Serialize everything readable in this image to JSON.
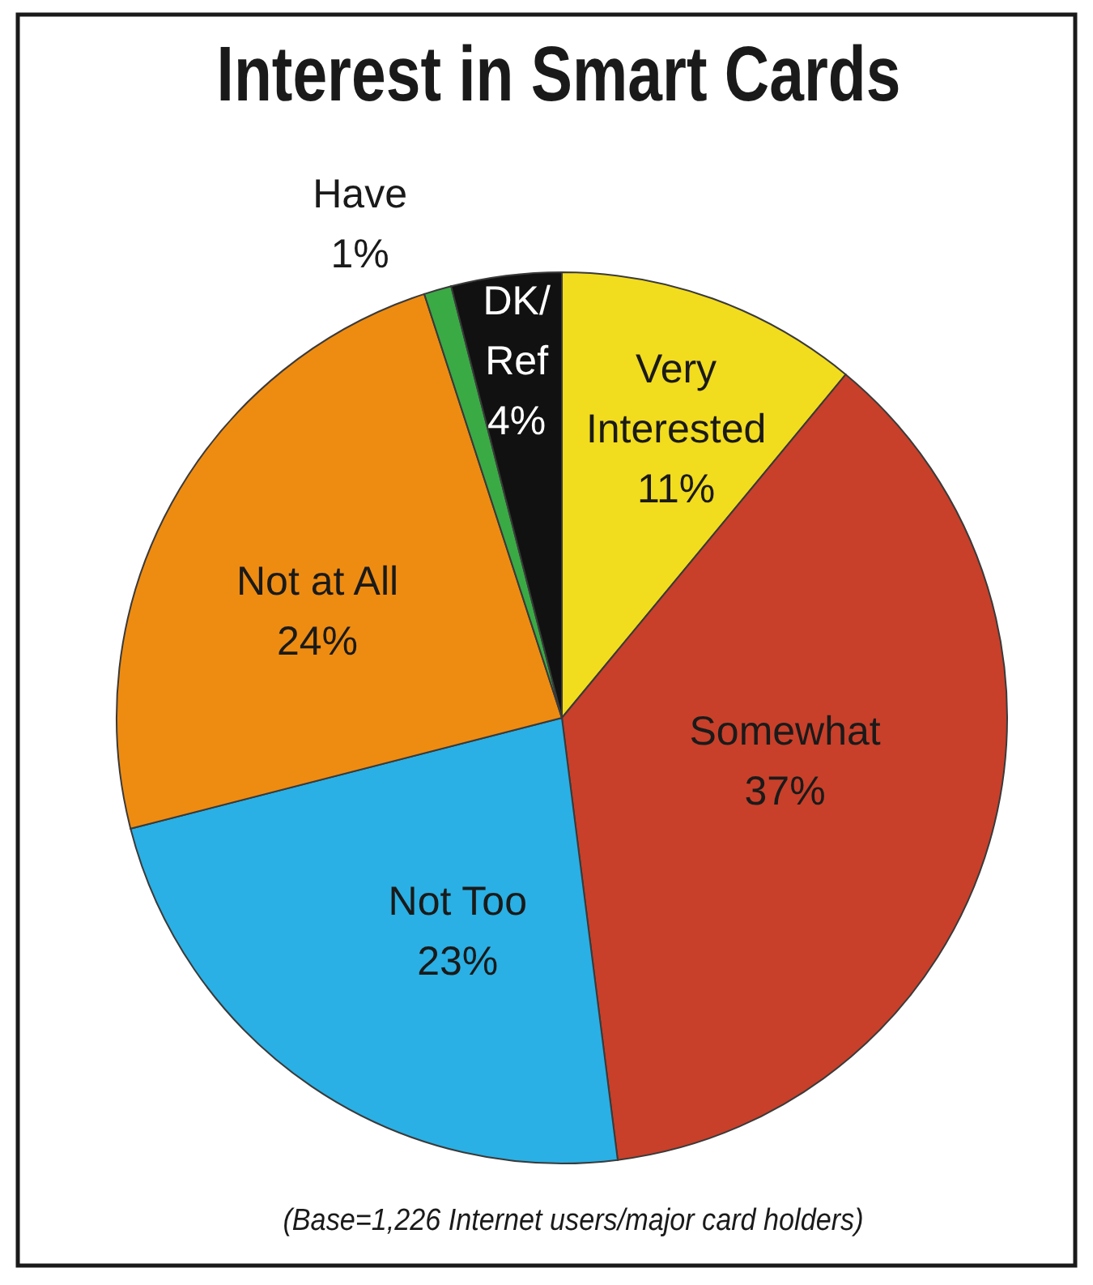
{
  "chart_data": {
    "type": "pie",
    "title": "Interest in Smart Cards",
    "categories": [
      "Very Interested",
      "Somewhat",
      "Not Too",
      "Not at All",
      "Have",
      "DK/Ref"
    ],
    "values": [
      11,
      37,
      23,
      24,
      1,
      4
    ],
    "value_labels": [
      "11%",
      "37%",
      "23%",
      "24%",
      "1%",
      "4%"
    ],
    "colors": [
      "#f2dc1e",
      "#c8402a",
      "#2ab0e4",
      "#ee8c12",
      "#3aaa45",
      "#111111"
    ],
    "legend": false,
    "annotations": [
      "(Base=1,226 Internet users/major card holders)"
    ]
  }
}
